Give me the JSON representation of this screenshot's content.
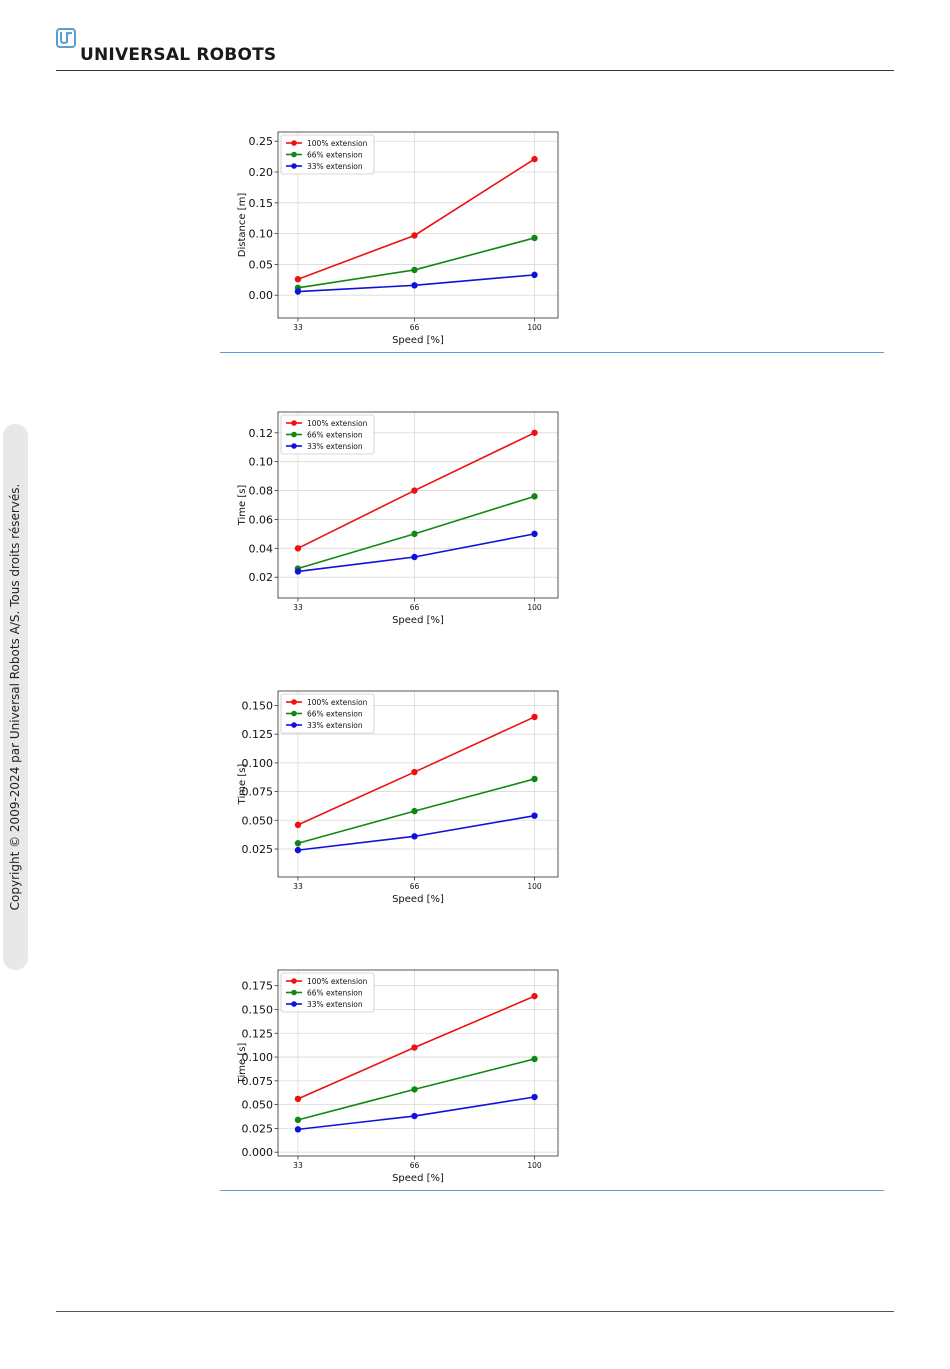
{
  "header": {
    "brand": "UNIVERSAL ROBOTS",
    "logo_icon": "ur-logo-icon",
    "logo_color": "#5a9fd4"
  },
  "sidebar": {
    "copyright": "Copyright © 2009-2024 par Universal Robots A/S. Tous droits réservés."
  },
  "colors": {
    "series": [
      "#ee1111",
      "#118811",
      "#1111dd"
    ],
    "separator": "#5b9bd5"
  },
  "chart_data": [
    {
      "type": "line",
      "xlabel": "Speed [%]",
      "ylabel": "Distance [m]",
      "x": [
        33,
        66,
        100
      ],
      "xticks": [
        "33",
        "66",
        "100"
      ],
      "ylim": [
        -0.037,
        0.265
      ],
      "yticks": [
        0.0,
        0.05,
        0.1,
        0.15,
        0.2,
        0.25
      ],
      "yticklabels": [
        "0.00",
        "0.05",
        "0.10",
        "0.15",
        "0.20",
        "0.25"
      ],
      "grid": true,
      "legend": "top-left",
      "series": [
        {
          "name": "100% extension",
          "values": [
            0.026,
            0.097,
            0.221
          ]
        },
        {
          "name": "66% extension",
          "values": [
            0.012,
            0.041,
            0.093
          ]
        },
        {
          "name": "33% extension",
          "values": [
            0.006,
            0.016,
            0.033
          ]
        }
      ]
    },
    {
      "type": "line",
      "xlabel": "Speed [%]",
      "ylabel": "Time [s]",
      "x": [
        33,
        66,
        100
      ],
      "xticks": [
        "33",
        "66",
        "100"
      ],
      "ylim": [
        0.0056,
        0.1344
      ],
      "yticks": [
        0.02,
        0.04,
        0.06,
        0.08,
        0.1,
        0.12
      ],
      "yticklabels": [
        "0.02",
        "0.04",
        "0.06",
        "0.08",
        "0.10",
        "0.12"
      ],
      "grid": true,
      "legend": "top-left",
      "series": [
        {
          "name": "100% extension",
          "values": [
            0.04,
            0.08,
            0.12
          ]
        },
        {
          "name": "66% extension",
          "values": [
            0.026,
            0.05,
            0.076
          ]
        },
        {
          "name": "33% extension",
          "values": [
            0.024,
            0.034,
            0.05
          ]
        }
      ]
    },
    {
      "type": "line",
      "xlabel": "Speed [%]",
      "ylabel": "Time [s]",
      "x": [
        33,
        66,
        100
      ],
      "xticks": [
        "33",
        "66",
        "100"
      ],
      "ylim": [
        0.0006,
        0.1626
      ],
      "yticks": [
        0.025,
        0.05,
        0.075,
        0.1,
        0.125,
        0.15
      ],
      "yticklabels": [
        "0.025",
        "0.050",
        "0.075",
        "0.100",
        "0.125",
        "0.150"
      ],
      "grid": true,
      "legend": "top-left",
      "series": [
        {
          "name": "100% extension",
          "values": [
            0.046,
            0.092,
            0.14
          ]
        },
        {
          "name": "66% extension",
          "values": [
            0.03,
            0.058,
            0.086
          ]
        },
        {
          "name": "33% extension",
          "values": [
            0.024,
            0.036,
            0.054
          ]
        }
      ]
    },
    {
      "type": "line",
      "xlabel": "Speed [%]",
      "ylabel": "Time [s]",
      "x": [
        33,
        66,
        100
      ],
      "xticks": [
        "33",
        "66",
        "100"
      ],
      "ylim": [
        -0.004,
        0.1915
      ],
      "yticks": [
        0.0,
        0.025,
        0.05,
        0.075,
        0.1,
        0.125,
        0.15,
        0.175
      ],
      "yticklabels": [
        "0.000",
        "0.025",
        "0.050",
        "0.075",
        "0.100",
        "0.125",
        "0.150",
        "0.175"
      ],
      "grid": true,
      "legend": "top-left",
      "series": [
        {
          "name": "100% extension",
          "values": [
            0.056,
            0.11,
            0.164
          ]
        },
        {
          "name": "66% extension",
          "values": [
            0.034,
            0.066,
            0.098
          ]
        },
        {
          "name": "33% extension",
          "values": [
            0.024,
            0.038,
            0.058
          ]
        }
      ]
    }
  ]
}
